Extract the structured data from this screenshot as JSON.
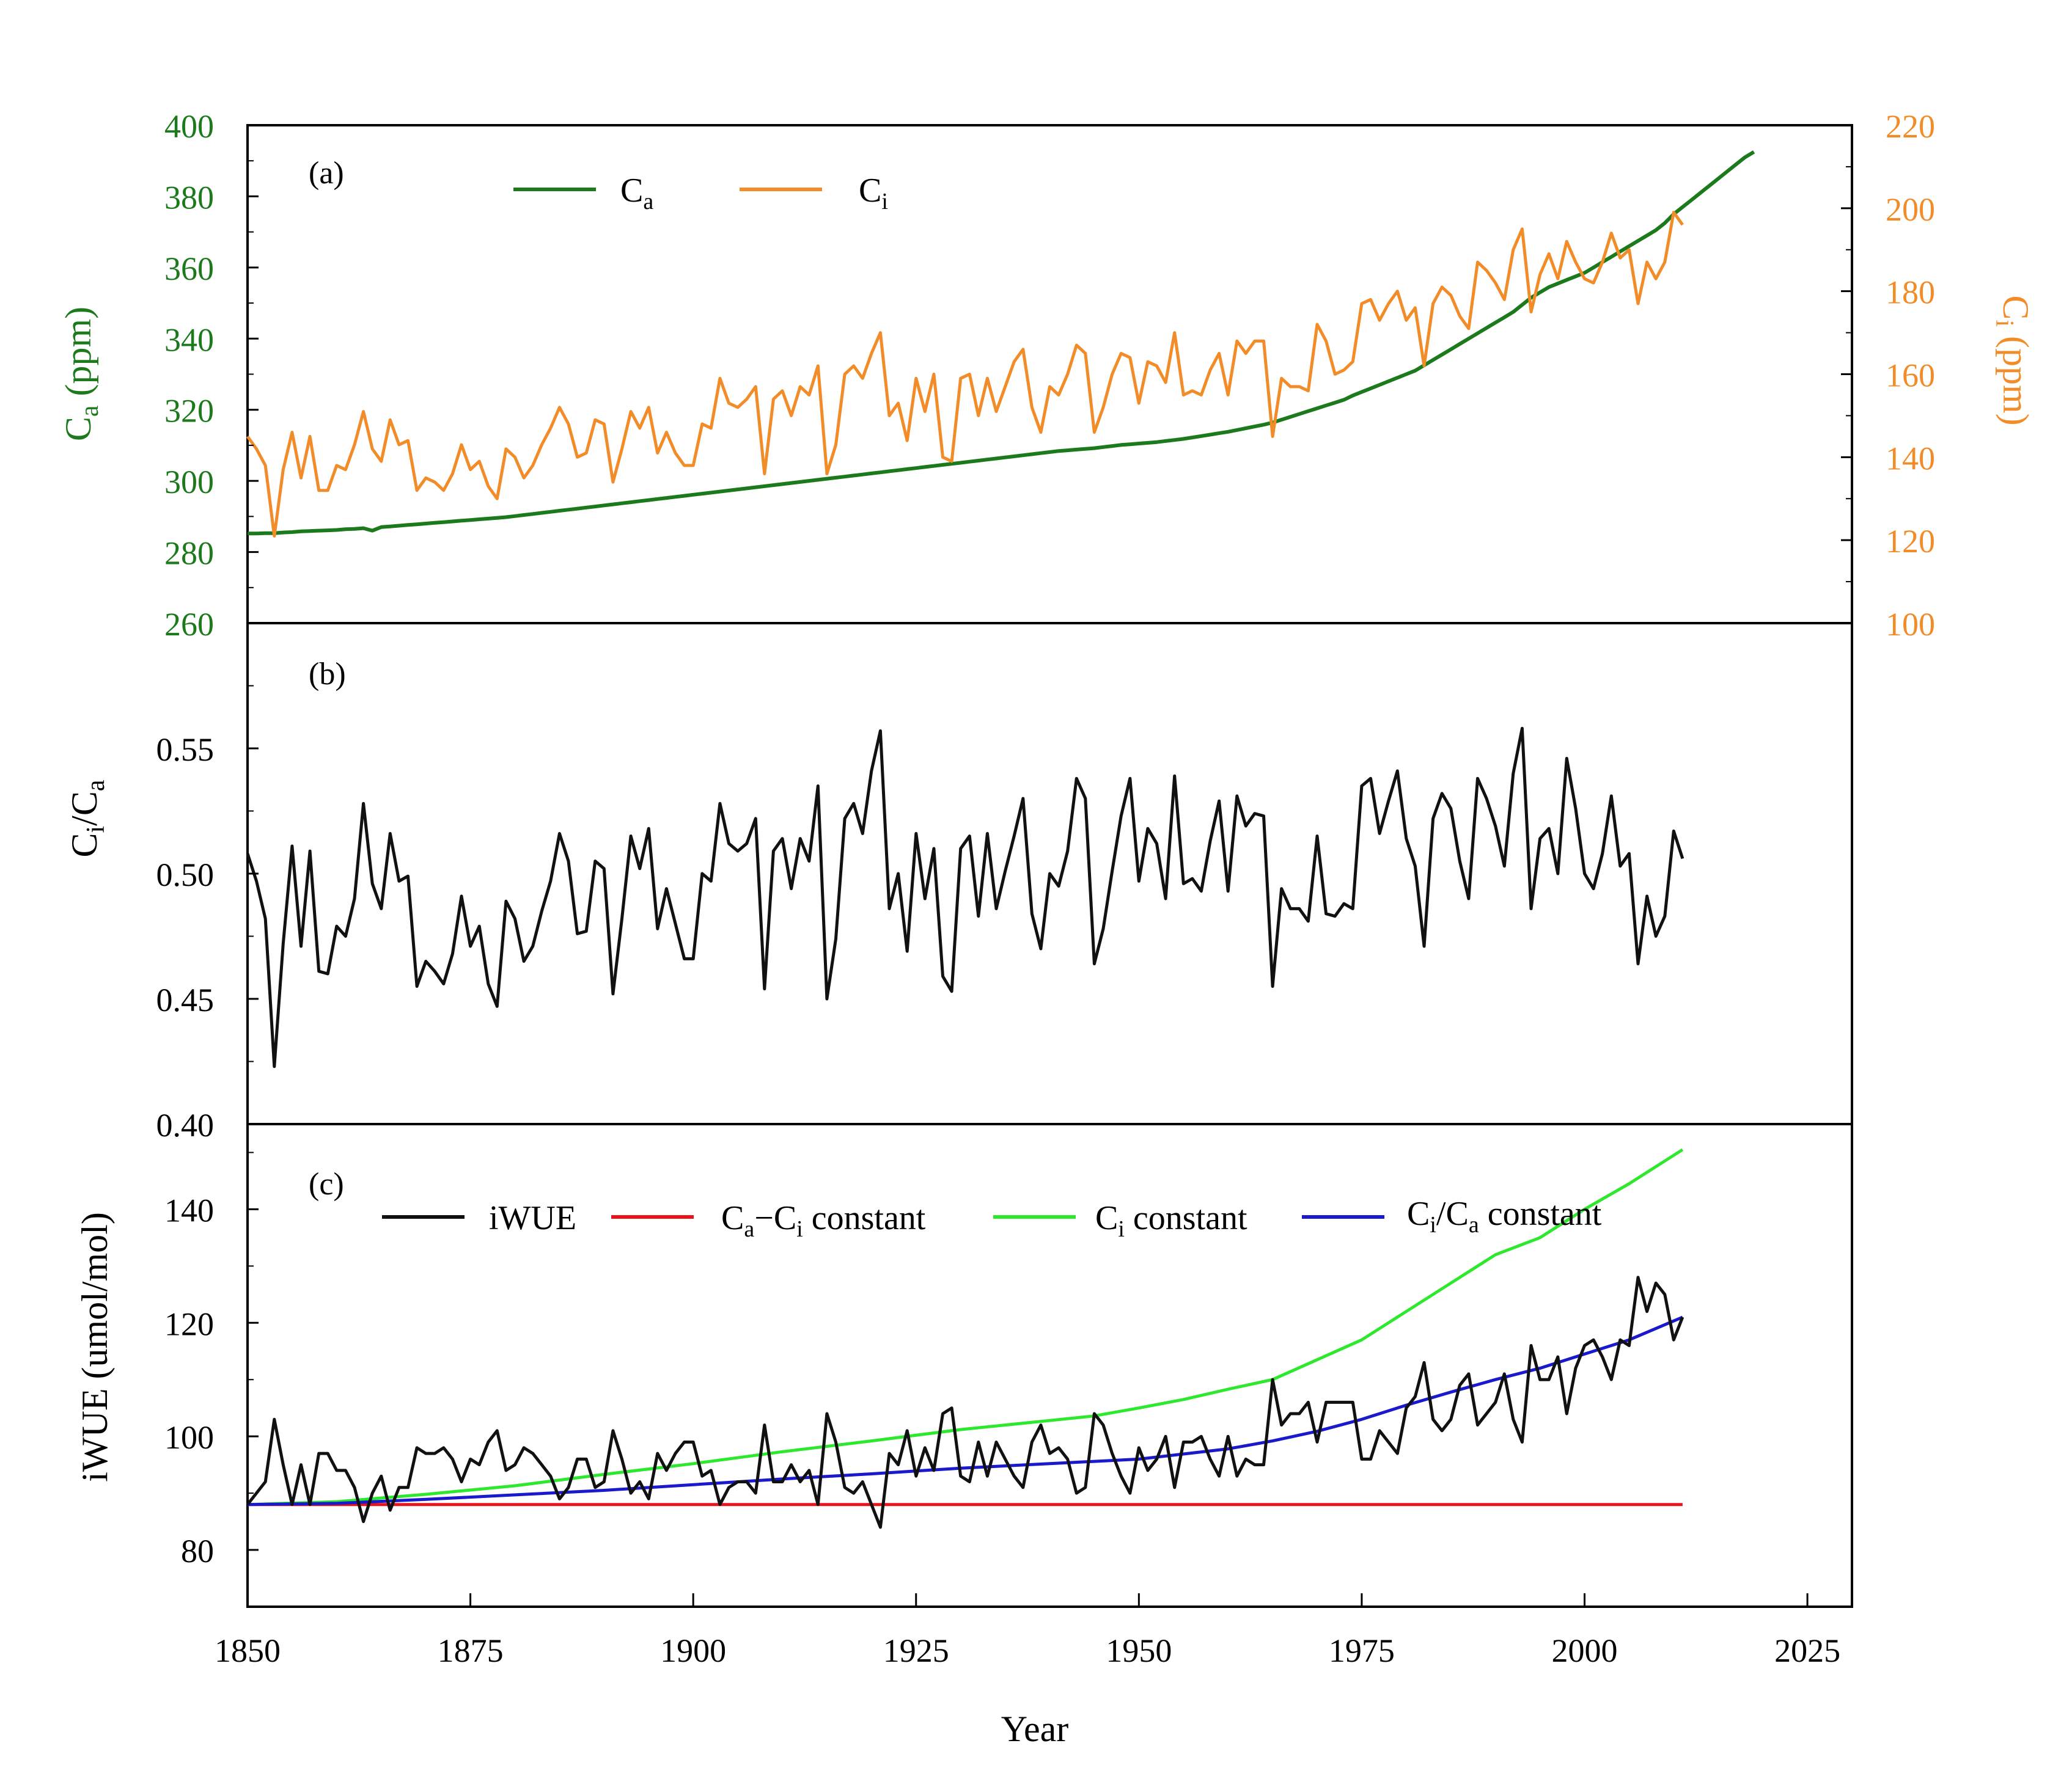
{
  "colors": {
    "ca": "#1c7a1c",
    "ci": "#f28c28",
    "ratio": "#111111",
    "iwue": "#111111",
    "ca_ci_const": "#e8141c",
    "ci_const": "#2ee82e",
    "ratio_const": "#1a1acc",
    "axis": "#000000"
  },
  "x_axis": {
    "label": "Year",
    "range": [
      1850,
      2030
    ],
    "ticks": [
      1850,
      1875,
      1900,
      1925,
      1950,
      1975,
      2000,
      2025
    ]
  },
  "panel_a": {
    "tag": "(a)",
    "left_axis": {
      "label_main": "C",
      "label_sub": "a",
      "label_rest": " (ppm)",
      "range": [
        260,
        400
      ],
      "ticks": [
        260,
        280,
        300,
        320,
        340,
        360,
        380,
        400
      ]
    },
    "right_axis": {
      "label_main": "C",
      "label_sub": "i",
      "label_rest": " (ppm)",
      "range": [
        100,
        220
      ],
      "ticks": [
        100,
        120,
        140,
        160,
        180,
        200,
        220
      ]
    },
    "legend": [
      {
        "main": "C",
        "sub": "a",
        "rest": ""
      },
      {
        "main": "C",
        "sub": "i",
        "rest": ""
      }
    ]
  },
  "panel_b": {
    "tag": "(b)",
    "axis": {
      "label_main": "C",
      "label_sub": "i",
      "label_mid": "/C",
      "label_sub2": "a",
      "range": [
        0.4,
        0.6
      ],
      "ticks": [
        0.4,
        0.45,
        0.5,
        0.55
      ],
      "tick_labels": [
        "0.40",
        "0.45",
        "0.50",
        "0.55"
      ]
    }
  },
  "panel_c": {
    "tag": "(c)",
    "axis": {
      "label": "iWUE (umol/mol)",
      "range": [
        70,
        155
      ],
      "ticks": [
        80,
        100,
        120,
        140
      ]
    },
    "legend": [
      {
        "parts": [
          [
            "iWUE",
            ""
          ]
        ]
      },
      {
        "parts": [
          [
            "C",
            "a"
          ],
          [
            "−C",
            "i"
          ],
          [
            " constant",
            ""
          ]
        ]
      },
      {
        "parts": [
          [
            "C",
            "i"
          ],
          [
            " constant",
            ""
          ]
        ]
      },
      {
        "parts": [
          [
            "C",
            "i"
          ],
          [
            "/C",
            "a"
          ],
          [
            " constant",
            ""
          ]
        ]
      }
    ]
  },
  "chart_data": [
    {
      "type": "line",
      "title": "(a)",
      "xlabel": "Year",
      "ylabel": "Ca (ppm)",
      "y2label": "Ci (ppm)",
      "xlim": [
        1850,
        2030
      ],
      "ylim": [
        260,
        400
      ],
      "y2lim": [
        100,
        220
      ],
      "series": [
        {
          "name": "Ca",
          "axis": "left",
          "x_start": 1850,
          "x_step": 1,
          "values": [
            285.2,
            285.2,
            285.3,
            285.3,
            285.5,
            285.6,
            285.8,
            285.9,
            286.0,
            286.1,
            286.2,
            286.4,
            286.5,
            286.7,
            286.0,
            287.0,
            287.2,
            287.4,
            287.6,
            287.8,
            288.0,
            288.2,
            288.4,
            288.6,
            288.8,
            289.0,
            289.2,
            289.4,
            289.6,
            289.8,
            290.1,
            290.4,
            290.7,
            291.0,
            291.3,
            291.6,
            291.9,
            292.2,
            292.5,
            292.8,
            293.1,
            293.4,
            293.7,
            294.0,
            294.3,
            294.6,
            294.9,
            295.2,
            295.5,
            295.8,
            296.1,
            296.4,
            296.7,
            297.0,
            297.3,
            297.6,
            297.9,
            298.2,
            298.5,
            298.8,
            299.1,
            299.4,
            299.7,
            300.0,
            300.3,
            300.6,
            300.9,
            301.2,
            301.5,
            301.8,
            302.1,
            302.4,
            302.7,
            303.0,
            303.3,
            303.6,
            303.9,
            304.2,
            304.5,
            304.8,
            305.1,
            305.4,
            305.7,
            306.0,
            306.3,
            306.6,
            306.9,
            307.2,
            307.5,
            307.8,
            308.1,
            308.4,
            308.6,
            308.8,
            309.0,
            309.2,
            309.5,
            309.8,
            310.1,
            310.3,
            310.5,
            310.7,
            310.9,
            311.2,
            311.5,
            311.8,
            312.2,
            312.6,
            313.0,
            313.4,
            313.8,
            314.3,
            314.8,
            315.3,
            315.8,
            316.4,
            317.2,
            318.0,
            318.8,
            319.6,
            320.4,
            321.2,
            322.0,
            322.8,
            324.0,
            325.0,
            326.0,
            327.0,
            328.0,
            329.0,
            330.0,
            331.0,
            332.5,
            334.0,
            335.5,
            337.0,
            338.5,
            340.0,
            341.5,
            343.0,
            344.5,
            346.0,
            347.5,
            349.5,
            351.5,
            353.0,
            354.5,
            355.5,
            356.5,
            357.5,
            358.5,
            360.0,
            361.5,
            363.0,
            364.5,
            366.0,
            367.5,
            369.0,
            370.5,
            372.5,
            375.0,
            377.0,
            379.0,
            381.0,
            383.0,
            385.0,
            387.0,
            389.0,
            391.0,
            392.5
          ]
        },
        {
          "name": "Ci",
          "axis": "right",
          "x_start": 1850,
          "x_step": 1,
          "values": [
            145,
            142,
            138,
            121,
            137,
            146,
            135,
            145,
            132,
            132,
            138,
            137,
            143,
            151,
            142,
            139,
            149,
            143,
            144,
            132,
            135,
            134,
            132,
            136,
            143,
            137,
            139,
            133,
            130,
            142,
            140,
            135,
            138,
            143,
            147,
            152,
            148,
            140,
            141,
            149,
            148,
            134,
            142,
            151,
            147,
            152,
            141,
            146,
            141,
            138,
            138,
            148,
            147,
            159,
            153,
            152,
            154,
            157,
            136,
            154,
            156,
            150,
            157,
            155,
            162,
            136,
            143,
            160,
            162,
            159,
            165,
            170,
            150,
            153,
            144,
            159,
            151,
            160,
            140,
            139,
            159,
            160,
            150,
            159,
            151,
            157,
            163,
            166,
            152,
            146,
            157,
            155,
            160,
            167,
            165,
            146,
            152,
            160,
            165,
            164,
            153,
            163,
            162,
            158,
            170,
            155,
            156,
            155,
            161,
            165,
            155,
            168,
            165,
            168,
            168,
            145,
            159,
            157,
            157,
            156,
            172,
            168,
            160,
            161,
            163,
            177,
            178,
            173,
            177,
            180,
            173,
            176,
            162,
            177,
            181,
            179,
            174,
            171,
            187,
            185,
            182,
            178,
            190,
            195,
            175,
            184,
            189,
            183,
            192,
            187,
            183,
            182,
            187,
            194,
            188,
            190,
            177,
            187,
            183,
            187,
            199,
            196
          ]
        }
      ]
    },
    {
      "type": "line",
      "title": "(b)",
      "xlabel": "Year",
      "ylabel": "Ci/Ca",
      "xlim": [
        1850,
        2030
      ],
      "ylim": [
        0.4,
        0.6
      ],
      "series": [
        {
          "name": "Ci/Ca",
          "x_start": 1850,
          "x_step": 1,
          "values": [
            0.508,
            0.497,
            0.482,
            0.423,
            0.472,
            0.511,
            0.471,
            0.509,
            0.461,
            0.46,
            0.479,
            0.475,
            0.49,
            0.528,
            0.496,
            0.486,
            0.516,
            0.497,
            0.499,
            0.455,
            0.465,
            0.461,
            0.456,
            0.468,
            0.491,
            0.471,
            0.479,
            0.456,
            0.447,
            0.489,
            0.482,
            0.465,
            0.471,
            0.485,
            0.497,
            0.516,
            0.505,
            0.476,
            0.477,
            0.505,
            0.502,
            0.452,
            0.482,
            0.515,
            0.502,
            0.518,
            0.478,
            0.494,
            0.48,
            0.466,
            0.466,
            0.5,
            0.497,
            0.528,
            0.512,
            0.509,
            0.512,
            0.522,
            0.454,
            0.509,
            0.514,
            0.494,
            0.514,
            0.505,
            0.535,
            0.45,
            0.474,
            0.522,
            0.528,
            0.516,
            0.541,
            0.557,
            0.486,
            0.5,
            0.469,
            0.516,
            0.49,
            0.51,
            0.459,
            0.453,
            0.51,
            0.515,
            0.483,
            0.516,
            0.486,
            0.501,
            0.515,
            0.53,
            0.484,
            0.47,
            0.5,
            0.495,
            0.509,
            0.538,
            0.53,
            0.464,
            0.478,
            0.501,
            0.523,
            0.538,
            0.497,
            0.518,
            0.512,
            0.49,
            0.539,
            0.496,
            0.498,
            0.493,
            0.513,
            0.529,
            0.493,
            0.531,
            0.519,
            0.524,
            0.523,
            0.455,
            0.494,
            0.486,
            0.486,
            0.481,
            0.515,
            0.484,
            0.483,
            0.488,
            0.486,
            0.535,
            0.538,
            0.516,
            0.529,
            0.541,
            0.514,
            0.503,
            0.471,
            0.522,
            0.532,
            0.526,
            0.505,
            0.49,
            0.538,
            0.53,
            0.519,
            0.503,
            0.54,
            0.558,
            0.486,
            0.514,
            0.518,
            0.5,
            0.546,
            0.526,
            0.5,
            0.494,
            0.508,
            0.531,
            0.503,
            0.508,
            0.464,
            0.491,
            0.475,
            0.483,
            0.517,
            0.506
          ]
        }
      ]
    },
    {
      "type": "line",
      "title": "(c)",
      "xlabel": "Year",
      "ylabel": "iWUE (umol/mol)",
      "xlim": [
        1850,
        2030
      ],
      "ylim": [
        70,
        155
      ],
      "series": [
        {
          "name": "iWUE",
          "x_start": 1850,
          "x_step": 1,
          "values": [
            88.0,
            90.0,
            92.0,
            103.0,
            95.0,
            88.0,
            95.0,
            88.0,
            97.0,
            97.0,
            94.0,
            94.0,
            91.0,
            85.0,
            90.0,
            93.0,
            87.0,
            91.0,
            91.0,
            98.0,
            97.0,
            97.0,
            98.0,
            96.0,
            92.0,
            96.0,
            95.0,
            99.0,
            101.0,
            94.0,
            95.0,
            98.0,
            97.0,
            95.0,
            93.0,
            89.0,
            91.0,
            96.0,
            96.0,
            91.0,
            92.0,
            101.0,
            96.0,
            90.0,
            92.0,
            89.0,
            97.0,
            94.0,
            97.0,
            99.0,
            99.0,
            93.0,
            94.0,
            88.0,
            91.0,
            92.0,
            92.0,
            90.0,
            102.0,
            92.0,
            92.0,
            95.0,
            92.0,
            94.0,
            88.0,
            104.0,
            99.0,
            91.0,
            90.0,
            92.0,
            88.0,
            84.0,
            97.0,
            95.0,
            101.0,
            93.0,
            98.0,
            94.0,
            104.0,
            105.0,
            93.0,
            92.0,
            99.0,
            93.0,
            99.0,
            96.0,
            93.0,
            91.0,
            99.0,
            102.0,
            97.0,
            98.0,
            96.0,
            90.0,
            91.0,
            104.0,
            102.0,
            97.0,
            93.0,
            90.0,
            98.0,
            94.0,
            96.0,
            100.0,
            91.0,
            99.0,
            99.0,
            100.0,
            96.0,
            93.0,
            100.0,
            93.0,
            96.0,
            95.0,
            95.0,
            110.0,
            102.0,
            104.0,
            104.0,
            106.0,
            99.0,
            106.0,
            106.0,
            106.0,
            106.0,
            96.0,
            96.0,
            101.0,
            99.0,
            97.0,
            105.0,
            107.0,
            113.0,
            103.0,
            101.0,
            103.0,
            109.0,
            111.0,
            102.0,
            104.0,
            106.0,
            111.0,
            103.0,
            99.0,
            116.0,
            110.0,
            110.0,
            114.0,
            104.0,
            112.0,
            116.0,
            117.0,
            114.0,
            110.0,
            117.0,
            116.0,
            128.0,
            122.0,
            127.0,
            125.0,
            117.0,
            121.0
          ]
        },
        {
          "name": "Ca−Ci constant",
          "x": [
            1850,
            2011
          ],
          "values": [
            88.0,
            88.0
          ]
        },
        {
          "name": "Ci constant",
          "x": [
            1850,
            1860,
            1870,
            1880,
            1890,
            1900,
            1910,
            1920,
            1930,
            1940,
            1945,
            1950,
            1955,
            1960,
            1965,
            1970,
            1975,
            1980,
            1985,
            1990,
            1995,
            2000,
            2005,
            2011
          ],
          "values": [
            88,
            88.5,
            89.8,
            91.3,
            93.3,
            95.2,
            97.3,
            99.2,
            101.2,
            102.8,
            103.6,
            105.0,
            106.5,
            108.3,
            110.0,
            113.5,
            117.0,
            122.0,
            127.0,
            132.0,
            135.0,
            140.0,
            144.5,
            150.5
          ]
        },
        {
          "name": "Ci/Ca constant",
          "x": [
            1850,
            1860,
            1870,
            1880,
            1890,
            1900,
            1910,
            1920,
            1930,
            1940,
            1945,
            1950,
            1955,
            1960,
            1965,
            1970,
            1975,
            1980,
            1985,
            1990,
            1995,
            2000,
            2005,
            2011
          ],
          "values": [
            88,
            88.2,
            88.9,
            89.7,
            90.5,
            91.5,
            92.5,
            93.4,
            94.4,
            95.2,
            95.6,
            96.0,
            96.9,
            97.8,
            99.2,
            100.9,
            103.0,
            105.5,
            107.8,
            110.0,
            112.0,
            114.5,
            117.0,
            121.0
          ]
        }
      ]
    }
  ]
}
